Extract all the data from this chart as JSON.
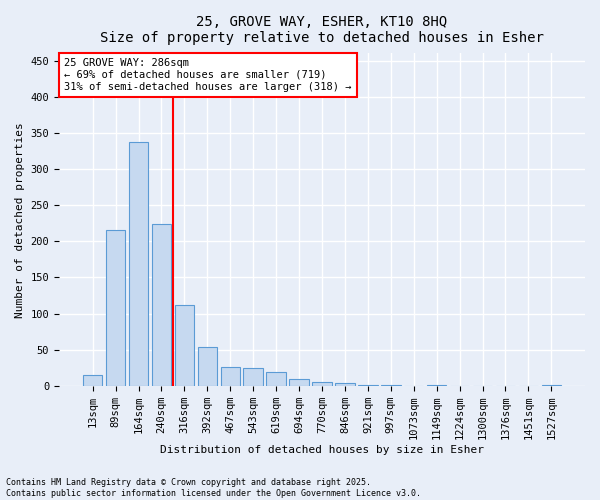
{
  "title_line1": "25, GROVE WAY, ESHER, KT10 8HQ",
  "title_line2": "Size of property relative to detached houses in Esher",
  "xlabel": "Distribution of detached houses by size in Esher",
  "ylabel": "Number of detached properties",
  "bar_labels": [
    "13sqm",
    "89sqm",
    "164sqm",
    "240sqm",
    "316sqm",
    "392sqm",
    "467sqm",
    "543sqm",
    "619sqm",
    "694sqm",
    "770sqm",
    "846sqm",
    "921sqm",
    "997sqm",
    "1073sqm",
    "1149sqm",
    "1224sqm",
    "1300sqm",
    "1376sqm",
    "1451sqm",
    "1527sqm"
  ],
  "bar_values": [
    15,
    216,
    338,
    224,
    112,
    54,
    26,
    25,
    19,
    9,
    5,
    4,
    1,
    1,
    0,
    1,
    0,
    0,
    0,
    0,
    2
  ],
  "bar_color": "#c6d9f0",
  "bar_edge_color": "#5b9bd5",
  "vline_x": 3.5,
  "vline_color": "red",
  "annotation_title": "25 GROVE WAY: 286sqm",
  "annotation_line1": "← 69% of detached houses are smaller (719)",
  "annotation_line2": "31% of semi-detached houses are larger (318) →",
  "annotation_box_color": "white",
  "annotation_box_edge": "red",
  "ylim": [
    0,
    460
  ],
  "yticks": [
    0,
    50,
    100,
    150,
    200,
    250,
    300,
    350,
    400,
    450
  ],
  "footnote1": "Contains HM Land Registry data © Crown copyright and database right 2025.",
  "footnote2": "Contains public sector information licensed under the Open Government Licence v3.0.",
  "background_color": "#e8eef8",
  "grid_color": "#ffffff",
  "title_fontsize": 10,
  "label_fontsize": 8,
  "tick_fontsize": 7.5,
  "annot_fontsize": 7.5
}
